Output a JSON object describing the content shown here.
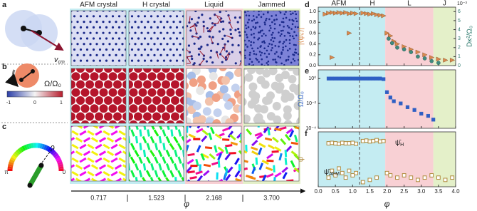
{
  "panel_labels": [
    "a",
    "b",
    "c",
    "d",
    "e",
    "f"
  ],
  "schematic": {
    "velocity_label": "v",
    "velocity_sub": "cm",
    "colorbar_label": "Ω/Ω₀",
    "colorbar_ticks": [
      "-1",
      "0",
      "1"
    ],
    "angle_label": "θ",
    "angle_left": "π",
    "angle_right": "0"
  },
  "snapshots": {
    "columns": [
      "AFM crystal",
      "H crystal",
      "Liquid",
      "Jammed"
    ],
    "phi_values": [
      "0.717",
      "1.523",
      "2.168",
      "3.700"
    ],
    "axis_label": "φ"
  },
  "phase_regions": [
    {
      "label": "AFM",
      "from": 0,
      "to": 1.2,
      "color": "#c4ecf2"
    },
    {
      "label": "H",
      "from": 1.2,
      "to": 1.95,
      "color": "#c4ecf2"
    },
    {
      "label": "L",
      "from": 1.95,
      "to": 3.35,
      "color": "#f8d0d4"
    },
    {
      "label": "J",
      "from": 3.35,
      "to": 4.0,
      "color": "#e4f0c9"
    }
  ],
  "phase_boundary": 1.2,
  "chart_data": [
    {
      "type": "scatter",
      "ylabel": "|⟨ψ₆⟩|",
      "y2label": "Dκ²/Ω₀",
      "y2_multiplier": "10⁻³",
      "xlim": [
        0,
        4.0
      ],
      "ylim": [
        0,
        1.08
      ],
      "y2lim": [
        0,
        6.5
      ],
      "yticks": [
        {
          "value": 0,
          "label": "0.0"
        },
        0.2,
        0.4,
        0.6,
        0.8,
        {
          "value": 1,
          "label": "1.0"
        }
      ],
      "y2ticks": [
        0,
        1,
        2,
        3,
        4,
        5,
        6
      ],
      "series": [
        {
          "color": "#d9884e",
          "marker": "triangle",
          "x": [
            0.2,
            0.3,
            0.4,
            0.5,
            0.6,
            0.7,
            0.8,
            0.9,
            1.0,
            1.1,
            1.3,
            1.4,
            1.5,
            1.6,
            1.7,
            1.8,
            1.9,
            0.4,
            0.9,
            2.0,
            2.1,
            2.2,
            2.3,
            2.5,
            2.7,
            2.9,
            3.1,
            3.3,
            3.5,
            3.7,
            3.9
          ],
          "values": [
            0.95,
            0.97,
            0.98,
            0.97,
            0.98,
            0.97,
            0.98,
            0.96,
            0.97,
            0.96,
            0.97,
            0.96,
            0.95,
            0.96,
            0.94,
            0.93,
            0.92,
            0.15,
            0.6,
            0.6,
            0.55,
            0.45,
            0.4,
            0.35,
            0.3,
            0.25,
            0.2,
            0.15,
            0.12,
            0.1,
            0.1
          ]
        },
        {
          "color": "#3f8a7e",
          "marker": "circle",
          "axis": "y2",
          "x": [
            2.05,
            2.15,
            2.3,
            2.5,
            2.7,
            2.9,
            3.1,
            3.3,
            3.5
          ],
          "values": [
            3.0,
            2.5,
            2.0,
            1.8,
            1.5,
            1.0,
            0.8,
            0.5,
            0.3
          ]
        }
      ]
    },
    {
      "type": "scatter",
      "ylabel": "Ω/Ω₀",
      "xlim": [
        0,
        4.0
      ],
      "ylim": [
        0.0001,
        5
      ],
      "log_y": true,
      "yticks": [
        {
          "value": 1,
          "label": "10⁰"
        },
        {
          "value": 0.01,
          "label": "10⁻²"
        },
        {
          "value": 0.0001,
          "label": "10⁻⁴"
        }
      ],
      "series": [
        {
          "color": "#2e5fc4",
          "marker": "square",
          "x": [
            0.3,
            0.4,
            0.5,
            0.6,
            0.7,
            0.8,
            0.9,
            1.0,
            1.1,
            1.2,
            1.3,
            1.4,
            1.5,
            1.6,
            1.7,
            1.8,
            1.9,
            2.0,
            2.1,
            2.2,
            2.4,
            2.6,
            2.8,
            3.0,
            3.2,
            3.35
          ],
          "values": [
            1,
            1,
            1,
            1,
            1,
            1,
            1,
            1,
            1,
            1,
            1,
            1,
            1,
            1,
            1,
            1,
            0.9,
            0.08,
            0.03,
            0.015,
            0.01,
            0.005,
            0.003,
            0.0015,
            0.001,
            0.0005
          ]
        }
      ]
    },
    {
      "type": "scatter",
      "ylabel": "ψ̄",
      "xlabel": "φ",
      "xlim": [
        0,
        4.0
      ],
      "ylim": [
        0,
        1.2
      ],
      "xticks": [
        {
          "value": 0,
          "label": "0.0"
        },
        0.5,
        {
          "value": 1,
          "label": "1.0"
        },
        1.5,
        {
          "value": 2,
          "label": "2.0"
        },
        2.5,
        {
          "value": 3,
          "label": "3.0"
        },
        3.5,
        {
          "value": 4,
          "label": "4.0"
        }
      ],
      "annotations": [
        {
          "text": "ψ̄",
          "sub": "AFM"
        },
        {
          "text": "ψ̄",
          "sub": "H"
        }
      ],
      "series": [
        {
          "color": "#b08a3c",
          "marker": "square",
          "x": [
            0.3,
            0.4,
            0.5,
            0.6,
            0.7,
            0.8,
            0.9,
            1.0,
            1.1,
            1.3,
            1.4,
            1.5,
            1.6,
            1.7,
            1.8,
            1.9,
            0.3,
            0.4,
            0.5,
            0.6,
            0.7,
            0.8,
            0.9,
            1.0,
            1.1,
            1.3,
            1.5,
            1.7,
            2.0,
            2.1,
            2.3,
            2.5,
            2.7,
            2.9,
            3.1,
            3.3,
            3.5,
            3.7,
            3.9
          ],
          "values": [
            0.95,
            0.96,
            0.95,
            0.94,
            0.96,
            0.95,
            0.95,
            0.96,
            0.94,
            1.0,
            1.01,
            0.99,
            1.0,
            1.02,
            0.99,
            1.0,
            0.2,
            0.35,
            0.25,
            0.4,
            0.3,
            0.2,
            0.35,
            0.25,
            0.3,
            0.1,
            0.15,
            0.2,
            0.3,
            0.25,
            0.2,
            0.25,
            0.2,
            0.15,
            0.2,
            0.25,
            0.2,
            0.15,
            0.2
          ]
        }
      ]
    }
  ]
}
